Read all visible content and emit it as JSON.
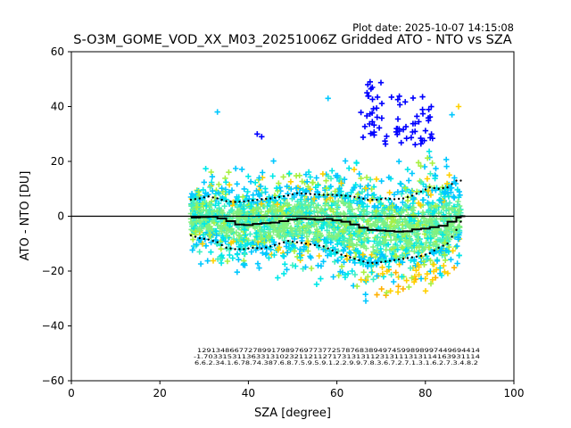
{
  "chart_data": {
    "type": "scatter",
    "title": "S-O3M_GOME_VOD_XX_M03_20251006Z Gridded ATO - NTO vs SZA",
    "plot_date": "Plot date: 2025-10-07 14:15:08",
    "xlabel": "SZA [degree]",
    "ylabel": "ATO - NTO [DU]",
    "xlim": [
      0,
      100
    ],
    "ylim": [
      -60,
      60
    ],
    "xticks": [
      0,
      20,
      40,
      60,
      80,
      100
    ],
    "yticks": [
      -60,
      -40,
      -20,
      0,
      20,
      40,
      60
    ],
    "zero_line": 0,
    "grid": false,
    "series": [
      {
        "name": "median",
        "style": "black-step",
        "x": [
          27,
          29,
          31,
          33,
          35,
          37,
          39,
          41,
          43,
          45,
          47,
          49,
          51,
          53,
          55,
          57,
          59,
          61,
          63,
          65,
          67,
          69,
          71,
          73,
          75,
          77,
          79,
          81,
          83,
          85,
          87,
          88
        ],
        "y": [
          -0.5,
          -0.3,
          -0.2,
          -0.8,
          -1.8,
          -3.0,
          -3.2,
          -2.8,
          -2.5,
          -2.3,
          -1.8,
          -1.2,
          -0.9,
          -1.0,
          -1.3,
          -1.0,
          -1.5,
          -2.0,
          -3.0,
          -4.2,
          -5.0,
          -5.2,
          -5.4,
          -5.6,
          -5.5,
          -4.8,
          -4.5,
          -4.0,
          -3.5,
          -2.0,
          -0.5,
          0.0
        ]
      },
      {
        "name": "upper",
        "style": "black-dot",
        "x": [
          27,
          29,
          31,
          33,
          35,
          37,
          39,
          41,
          43,
          45,
          47,
          49,
          51,
          53,
          55,
          57,
          59,
          61,
          63,
          65,
          67,
          69,
          71,
          73,
          75,
          77,
          79,
          81,
          83,
          85,
          87,
          88
        ],
        "y": [
          6.0,
          6.5,
          7.2,
          6.5,
          5.5,
          5.2,
          5.4,
          5.8,
          6.2,
          6.5,
          7.0,
          7.6,
          8.4,
          8.2,
          8.0,
          7.8,
          7.8,
          7.6,
          7.3,
          6.8,
          6.0,
          6.0,
          6.5,
          6.2,
          6.5,
          7.5,
          9.0,
          10.5,
          10.0,
          10.5,
          13.0,
          13.0
        ]
      },
      {
        "name": "lower",
        "style": "black-dot",
        "x": [
          27,
          29,
          31,
          33,
          35,
          37,
          39,
          41,
          43,
          45,
          47,
          49,
          51,
          53,
          55,
          57,
          59,
          61,
          63,
          65,
          67,
          69,
          71,
          73,
          75,
          77,
          79,
          81,
          83,
          85,
          87,
          88
        ],
        "y": [
          -7.0,
          -8.0,
          -8.5,
          -9.5,
          -11.5,
          -12.0,
          -12.0,
          -11.5,
          -11.8,
          -11.0,
          -10.0,
          -9.0,
          -9.5,
          -10.0,
          -10.5,
          -11.0,
          -12.5,
          -14.0,
          -15.0,
          -16.0,
          -17.0,
          -17.0,
          -16.5,
          -16.0,
          -15.5,
          -15.0,
          -14.5,
          -13.5,
          -11.5,
          -10.0,
          -5.0,
          -2.0
        ]
      }
    ],
    "point_colors": [
      "#00c8ff",
      "#00e8e8",
      "#40f0c0",
      "#80f080",
      "#a8f040",
      "#ffd000",
      "#ffb000",
      "#0000ff",
      "#2060ff"
    ],
    "bin_stats": {
      "row1": "1291348667727899179897697737725787683894974599898997449694414",
      "row2": "-1.7033153113633131023211211271731313112313111313114163931114",
      "row3": "6.6.2.34.1.6.78.74.387.6.8.7.5.9.5.9.1.2.2.9.9.7.8.3.6.7.2.7.1.3.1.6.2.7.3.4.8.2"
    }
  }
}
